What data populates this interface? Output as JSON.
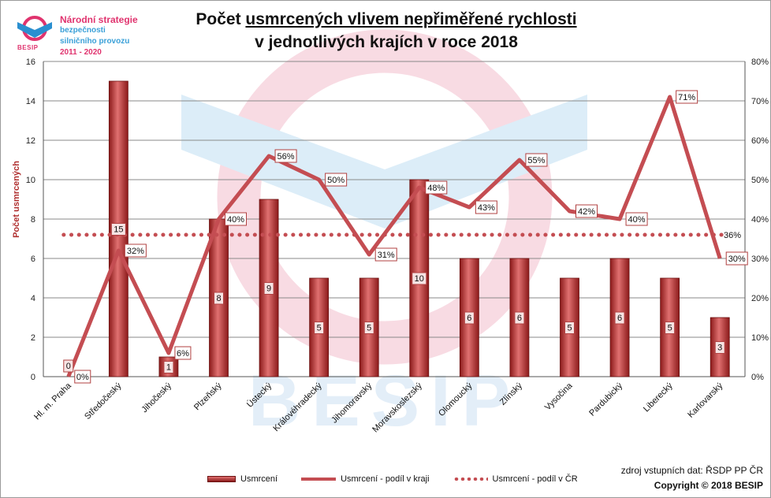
{
  "logo": {
    "line1": "Národní strategie",
    "line2": "bezpečnosti",
    "line3": "silničního provozu",
    "line4": "2011 - 2020",
    "brand": "BESIP"
  },
  "title": {
    "line1_a": "Počet ",
    "line1_b": "usmrcených vlivem nepřiměřené rychlosti",
    "line2": "v jednotlivých krajích v roce 2018"
  },
  "watermark": "BESIP",
  "colors": {
    "bar_dark": "#8b1a1a",
    "bar_light": "#e07070",
    "line": "#c44d52",
    "watermark_blue": "#dcedf8",
    "watermark_pink": "#f8dbe3"
  },
  "chart_data": {
    "type": "bar",
    "ylabel": "Počet usmrcených",
    "ylim": [
      0,
      16
    ],
    "yticks": [
      0,
      2,
      4,
      6,
      8,
      10,
      12,
      14,
      16
    ],
    "y2lim": [
      0,
      80
    ],
    "y2ticks": [
      "0%",
      "10%",
      "20%",
      "30%",
      "40%",
      "50%",
      "60%",
      "70%",
      "80%"
    ],
    "grid": true,
    "legend_position": "bottom",
    "categories": [
      "Hl. m. Praha",
      "Středočeský",
      "Jihočeský",
      "Plzeňský",
      "Ústecký",
      "Královéhradecký",
      "Jihomoravský",
      "Moravskoslezský",
      "Olomoucký",
      "Zlínský",
      "Vysočina",
      "Pardubický",
      "Liberecký",
      "Karlovarský"
    ],
    "series": [
      {
        "name": "Usmrcení",
        "type": "bar",
        "axis": "left",
        "values": [
          0,
          15,
          1,
          8,
          9,
          5,
          5,
          10,
          6,
          6,
          5,
          6,
          5,
          3
        ],
        "labels": [
          "0",
          "15",
          "1",
          "8",
          "9",
          "5",
          "5",
          "10",
          "6",
          "6",
          "5",
          "6",
          "5",
          "3"
        ]
      },
      {
        "name": "Usmrcení - podíl v kraji",
        "type": "line",
        "axis": "right",
        "values": [
          0,
          32,
          6,
          40,
          56,
          50,
          31,
          48,
          43,
          55,
          42,
          40,
          71,
          30
        ],
        "labels": [
          "0%",
          "32%",
          "6%",
          "40%",
          "56%",
          "50%",
          "31%",
          "48%",
          "43%",
          "55%",
          "42%",
          "40%",
          "71%",
          "30%"
        ]
      },
      {
        "name": "Usmrcení - podíl v ČR",
        "type": "dotted-line",
        "axis": "right",
        "value": 36,
        "label": "36%"
      }
    ]
  },
  "footer": {
    "source": "zdroj vstupních dat: ŘSDP PP ČR",
    "copyright": "Copyright © 2018  BESIP"
  }
}
